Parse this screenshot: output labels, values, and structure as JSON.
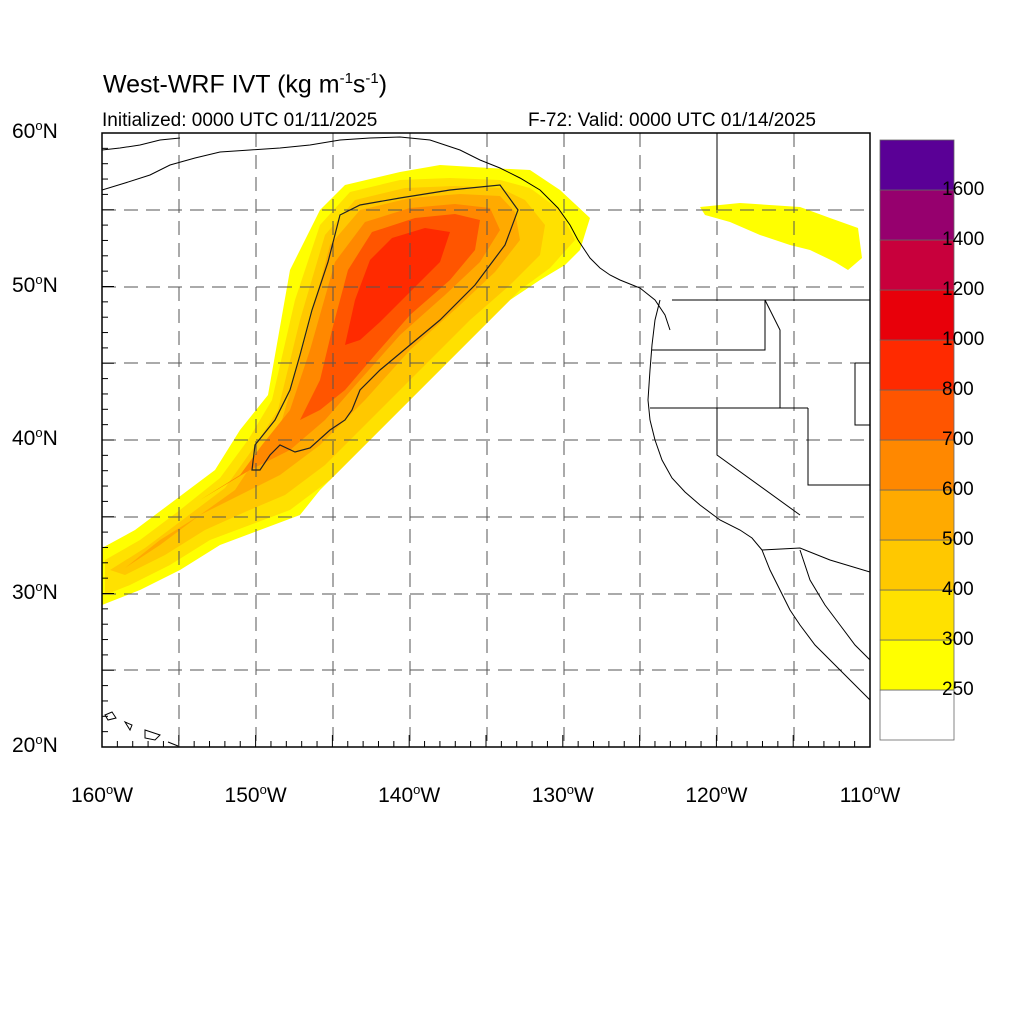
{
  "title": {
    "main": "West-WRF IVT (kg m",
    "sup1": "-1",
    "mid": "s",
    "sup2": "-1",
    "end": ")"
  },
  "initialized": "Initialized: 0000 UTC 01/11/2025",
  "valid": "F-72: Valid: 0000 UTC 01/14/2025",
  "lat_ticks": [
    {
      "num": "60",
      "unit": "N"
    },
    {
      "num": "50",
      "unit": "N"
    },
    {
      "num": "40",
      "unit": "N"
    },
    {
      "num": "30",
      "unit": "N"
    },
    {
      "num": "20",
      "unit": "N"
    }
  ],
  "lon_ticks": [
    {
      "num": "160",
      "unit": "W"
    },
    {
      "num": "150",
      "unit": "W"
    },
    {
      "num": "140",
      "unit": "W"
    },
    {
      "num": "130",
      "unit": "W"
    },
    {
      "num": "120",
      "unit": "W"
    },
    {
      "num": "110",
      "unit": "W"
    }
  ],
  "map_extent": {
    "lon_min": -160,
    "lon_max": -110,
    "lat_min": 20,
    "lat_max": 60
  },
  "colorbar": {
    "levels": [
      "250",
      "300",
      "400",
      "500",
      "600",
      "700",
      "800",
      "1000",
      "1200",
      "1400",
      "1600"
    ],
    "colors": [
      "#ffffff",
      "#ffff00",
      "#ffe100",
      "#ffc800",
      "#ffaa00",
      "#ff8800",
      "#ff5500",
      "#ff2a00",
      "#e8000a",
      "#c8003c",
      "#96006e",
      "#5a0096"
    ]
  },
  "contour_level": "250"
}
